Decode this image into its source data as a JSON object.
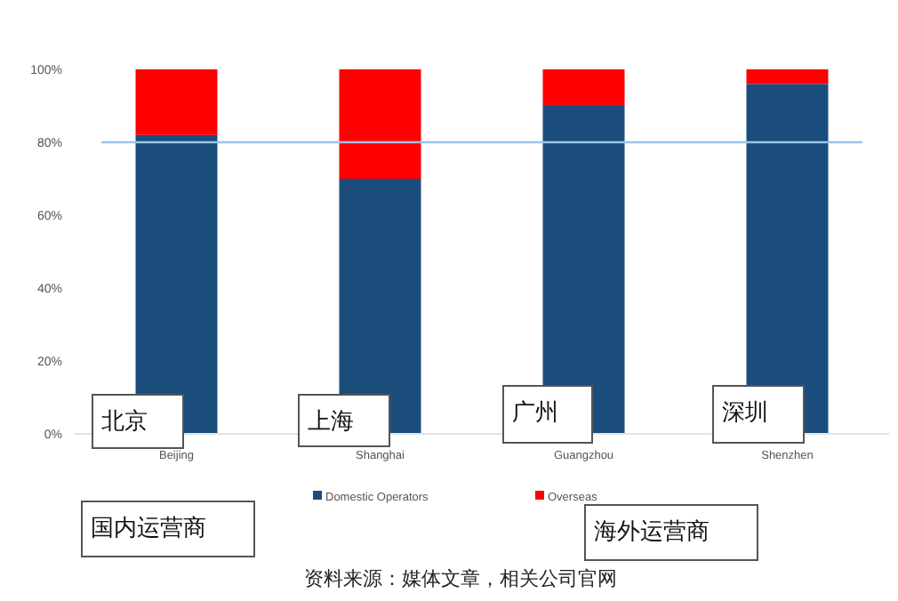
{
  "chart_data": {
    "type": "bar",
    "stacked": true,
    "categories": [
      "Beijing",
      "Shanghai",
      "Guangzhou",
      "Shenzhen"
    ],
    "series": [
      {
        "name": "Domestic Operators",
        "color": "#1a4d7c",
        "values": [
          82,
          70,
          90,
          96
        ]
      },
      {
        "name": "Overseas",
        "color": "#ff0000",
        "values": [
          18,
          30,
          10,
          4
        ]
      }
    ],
    "ylim": [
      0,
      100
    ],
    "yticks": [
      {
        "value": 0,
        "label": "0%"
      },
      {
        "value": 20,
        "label": "20%"
      },
      {
        "value": 40,
        "label": "40%"
      },
      {
        "value": 60,
        "label": "60%"
      },
      {
        "value": 80,
        "label": "80%"
      },
      {
        "value": 100,
        "label": "100%"
      }
    ],
    "ref_lines": [
      {
        "axis": "y",
        "value": 80,
        "color": "#9cc3e8"
      }
    ],
    "legend": "bottom",
    "annotations": [
      "北京",
      "上海",
      "广州",
      "深圳",
      "国内运营商",
      "海外运营商",
      "资料来源：媒体文章，相关公司官网"
    ]
  }
}
